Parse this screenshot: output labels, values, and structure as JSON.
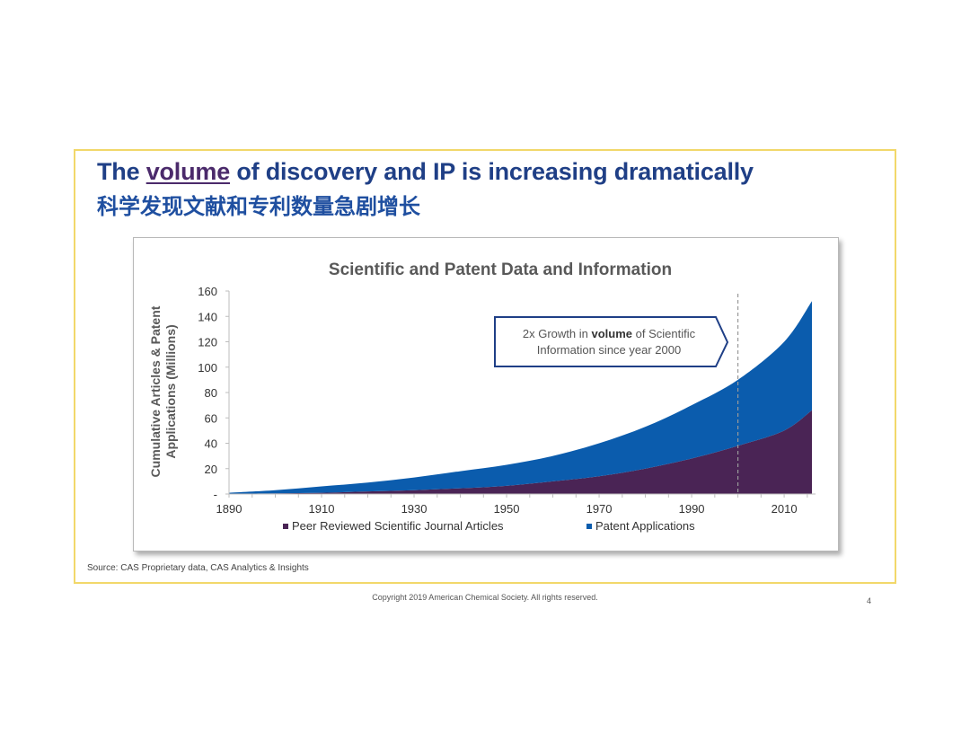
{
  "slide": {
    "title_before": "The ",
    "title_highlight": "volume",
    "title_after": " of discovery and IP is increasing dramatically",
    "subtitle": "科学发现文献和专利数量急剧增长",
    "source": "Source: CAS Proprietary data, CAS Analytics & Insights",
    "copyright": "Copyright 2019 American Chemical Society. All rights reserved.",
    "page_number": "4"
  },
  "chart_data": {
    "type": "area",
    "stacked": true,
    "title": "Scientific and Patent Data and Information",
    "ylabel_line1": "Cumulative Articles & Patent",
    "ylabel_line2": "Applications (Millions)",
    "xlabel": "",
    "xlim": [
      1890,
      2016
    ],
    "ylim": [
      0,
      160
    ],
    "x_ticks": [
      1890,
      1910,
      1930,
      1950,
      1970,
      1990,
      2010
    ],
    "y_ticks": [
      0,
      20,
      40,
      60,
      80,
      100,
      120,
      140,
      160
    ],
    "y_tick_labels": [
      "-",
      "20",
      "40",
      "60",
      "80",
      "100",
      "120",
      "140",
      "160"
    ],
    "x": [
      1890,
      1900,
      1910,
      1920,
      1930,
      1940,
      1950,
      1960,
      1970,
      1980,
      1990,
      2000,
      2010,
      2016
    ],
    "series": [
      {
        "name": "Peer Reviewed Scientific Journal Articles",
        "color": "#4a2455",
        "values": [
          0.2,
          0.5,
          1,
          2,
          3,
          4.5,
          6.5,
          10,
          14,
          20,
          28,
          38,
          50,
          66
        ]
      },
      {
        "name": "Patent Applications",
        "color": "#0b5cad",
        "values": [
          0.8,
          2.5,
          5,
          7,
          10,
          13.5,
          16.5,
          20,
          26,
          33,
          42,
          52,
          70,
          86
        ]
      }
    ],
    "reference_line": {
      "x": 2000,
      "style": "dashed",
      "color": "#9a9a9a"
    },
    "annotation": {
      "text_before": "2x Growth in ",
      "text_bold": "volume",
      "text_after": " of Scientific",
      "line2": "Information since year 2000"
    },
    "legend_position": "bottom",
    "grid": false
  }
}
